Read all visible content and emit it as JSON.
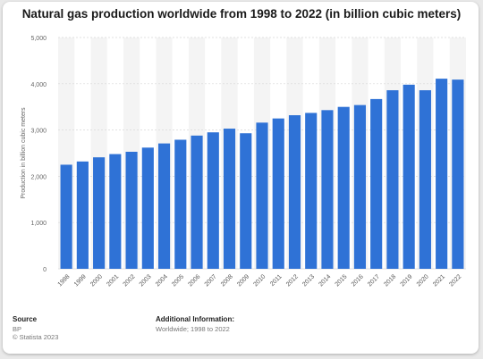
{
  "chart_data": {
    "type": "bar",
    "title": "Natural gas production worldwide from 1998 to 2022 (in billion cubic meters)",
    "xlabel": "",
    "ylabel": "Production in billion cubic meters",
    "ylim": [
      0,
      5000
    ],
    "yticks": [
      "0",
      "1,000",
      "2,000",
      "3,000",
      "4,000",
      "5,000"
    ],
    "ytick_values": [
      0,
      1000,
      2000,
      3000,
      4000,
      5000
    ],
    "categories": [
      "1998",
      "1999",
      "2000",
      "2001",
      "2002",
      "2003",
      "2004",
      "2005",
      "2006",
      "2007",
      "2008",
      "2009",
      "2010",
      "2011",
      "2012",
      "2013",
      "2014",
      "2015",
      "2016",
      "2017",
      "2018",
      "2019",
      "2020",
      "2021",
      "2022"
    ],
    "values": [
      2250,
      2320,
      2410,
      2480,
      2530,
      2620,
      2710,
      2790,
      2880,
      2950,
      3030,
      2930,
      3160,
      3250,
      3320,
      3370,
      3430,
      3500,
      3540,
      3670,
      3860,
      3980,
      3860,
      4110,
      4090
    ],
    "bar_color": "#2f72d6",
    "grid": true,
    "alternate_column_shading": true
  },
  "footer": {
    "source_label": "Source",
    "source_lines": [
      "BP",
      "© Statista 2023"
    ],
    "info_label": "Additional Information:",
    "info_text": "Worldwide; 1998 to 2022"
  }
}
